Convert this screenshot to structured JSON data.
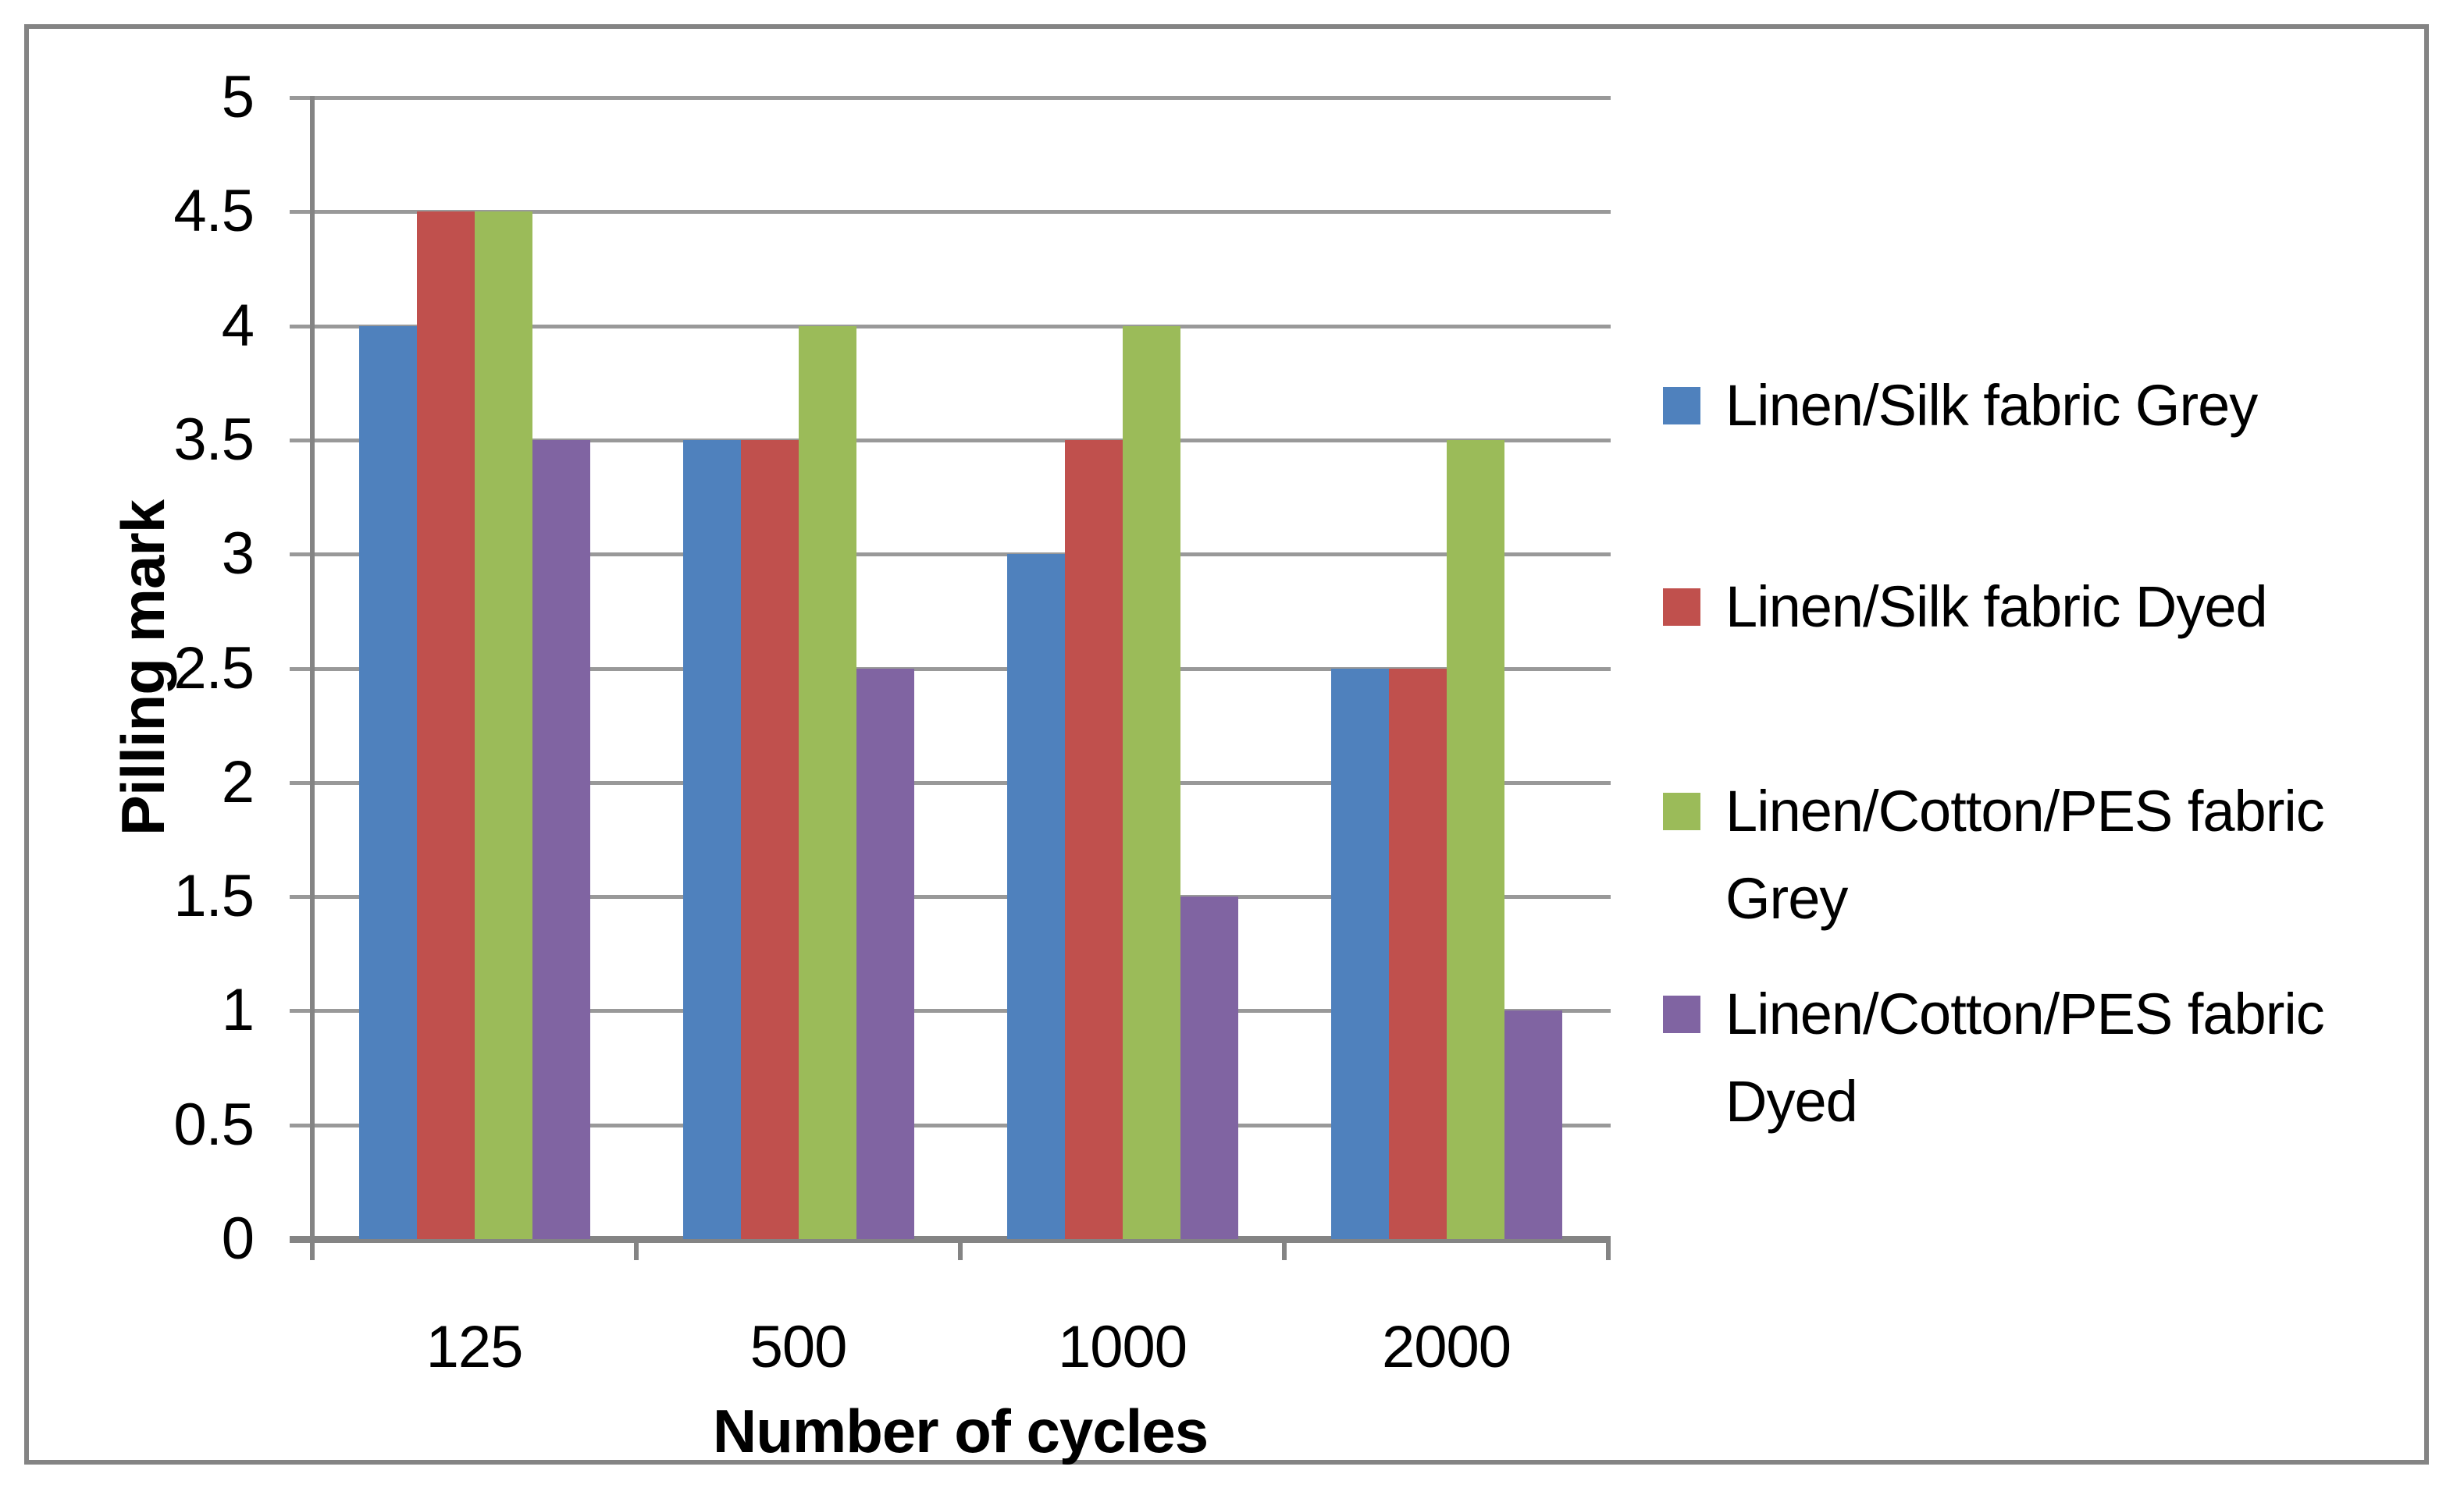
{
  "chart_data": {
    "type": "bar",
    "title": "",
    "categories": [
      "125",
      "500",
      "1000",
      "2000"
    ],
    "series": [
      {
        "name": "Linen/Silk fabric Grey",
        "color": "#4F81BD",
        "values": [
          4,
          3.5,
          3,
          2.5
        ]
      },
      {
        "name": "Linen/Silk fabric Dyed",
        "color": "#C0504D",
        "values": [
          4.5,
          3.5,
          3.5,
          2.5
        ]
      },
      {
        "name": "Linen/Cotton/PES fabric Grey",
        "color": "#9BBB59",
        "values": [
          4.5,
          4,
          4,
          3.5
        ]
      },
      {
        "name": "Linen/Cotton/PES fabric Dyed",
        "color": "#8064A2",
        "values": [
          3.5,
          2.5,
          1.5,
          1
        ]
      }
    ],
    "xlabel": "Number of cycles",
    "ylabel": "Pilling mark",
    "ylim": [
      0,
      5
    ],
    "ytick_step": 0.5,
    "y_tick_labels": [
      "0",
      "0.5",
      "1",
      "1.5",
      "2",
      "2.5",
      "3",
      "3.5",
      "4",
      "4.5",
      "5"
    ],
    "grid": true,
    "legend_position": "right",
    "grid_color": "#999999",
    "axis_color": "#848484",
    "frame_color": "#848484",
    "text_color": "#000000",
    "background": "#FFFFFF"
  }
}
